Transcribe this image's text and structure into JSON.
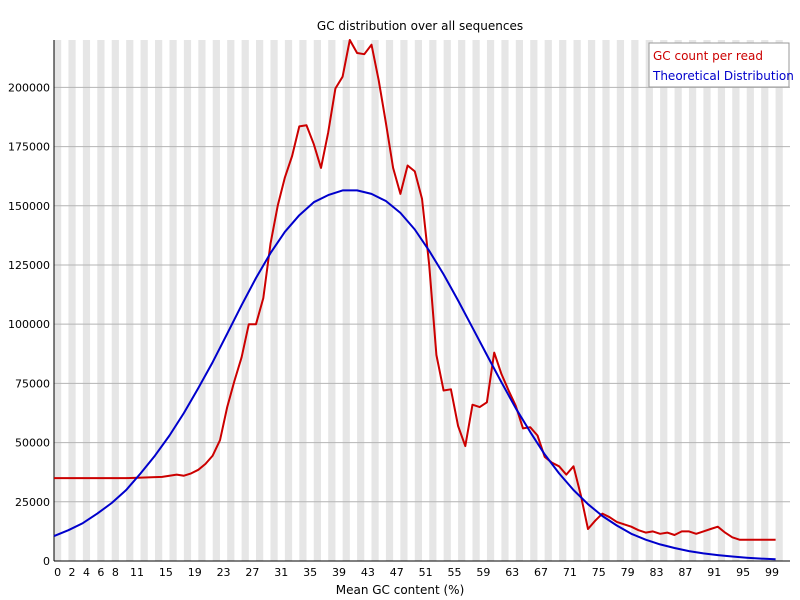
{
  "chart_data": {
    "type": "line",
    "title": "GC distribution over all sequences",
    "xlabel": "Mean GC content (%)",
    "ylabel": "",
    "xlim": [
      0,
      102
    ],
    "ylim": [
      0,
      220000
    ],
    "x_tick_labels": [
      "0",
      "2",
      "4",
      "6",
      "8",
      "11",
      "15",
      "19",
      "23",
      "27",
      "31",
      "35",
      "39",
      "43",
      "47",
      "51",
      "55",
      "59",
      "63",
      "67",
      "71",
      "75",
      "79",
      "83",
      "87",
      "91",
      "95",
      "99"
    ],
    "y_tick_labels": [
      "0",
      "25000",
      "50000",
      "75000",
      "100000",
      "125000",
      "150000",
      "175000",
      "200000"
    ],
    "y_tick_values": [
      0,
      25000,
      50000,
      75000,
      100000,
      125000,
      150000,
      175000,
      200000
    ],
    "grid": "alternating vertical bands, horizontal gridlines",
    "legend_position": "top-right",
    "series": [
      {
        "name": "GC count per read",
        "color": "#cc0000",
        "points": [
          [
            0,
            35000
          ],
          [
            5,
            35000
          ],
          [
            10,
            35000
          ],
          [
            15,
            35500
          ],
          [
            17,
            36500
          ],
          [
            18,
            36000
          ],
          [
            19,
            37000
          ],
          [
            20,
            38500
          ],
          [
            21,
            41000
          ],
          [
            22,
            44500
          ],
          [
            23,
            51000
          ],
          [
            24,
            65000
          ],
          [
            25,
            76000
          ],
          [
            26,
            86000
          ],
          [
            27,
            100000
          ],
          [
            28,
            100000
          ],
          [
            29,
            111000
          ],
          [
            30,
            134000
          ],
          [
            31,
            150000
          ],
          [
            32,
            162000
          ],
          [
            33,
            171000
          ],
          [
            34,
            183500
          ],
          [
            35,
            184000
          ],
          [
            36,
            176000
          ],
          [
            37,
            166000
          ],
          [
            38,
            181000
          ],
          [
            39,
            199500
          ],
          [
            40,
            204500
          ],
          [
            41,
            220000
          ],
          [
            42,
            214500
          ],
          [
            43,
            214000
          ],
          [
            44,
            218000
          ],
          [
            45,
            203000
          ],
          [
            46,
            185000
          ],
          [
            47,
            166000
          ],
          [
            48,
            155000
          ],
          [
            49,
            167000
          ],
          [
            50,
            164500
          ],
          [
            51,
            153000
          ],
          [
            52,
            125000
          ],
          [
            53,
            87000
          ],
          [
            54,
            72000
          ],
          [
            55,
            72500
          ],
          [
            56,
            57000
          ],
          [
            57,
            48500
          ],
          [
            58,
            66000
          ],
          [
            59,
            65000
          ],
          [
            60,
            67000
          ],
          [
            61,
            88000
          ],
          [
            62,
            79000
          ],
          [
            63,
            72000
          ],
          [
            64,
            65500
          ],
          [
            65,
            56000
          ],
          [
            66,
            56500
          ],
          [
            67,
            53000
          ],
          [
            68,
            44000
          ],
          [
            69,
            41500
          ],
          [
            70,
            40000
          ],
          [
            71,
            36500
          ],
          [
            72,
            40000
          ],
          [
            73,
            28000
          ],
          [
            74,
            13500
          ],
          [
            75,
            17000
          ],
          [
            76,
            20000
          ],
          [
            77,
            18500
          ],
          [
            78,
            16500
          ],
          [
            79,
            15500
          ],
          [
            80,
            14500
          ],
          [
            81,
            13000
          ],
          [
            82,
            12000
          ],
          [
            83,
            12500
          ],
          [
            84,
            11500
          ],
          [
            85,
            12000
          ],
          [
            86,
            11000
          ],
          [
            87,
            12500
          ],
          [
            88,
            12500
          ],
          [
            89,
            11500
          ],
          [
            90,
            12500
          ],
          [
            91,
            13500
          ],
          [
            92,
            14500
          ],
          [
            93,
            12000
          ],
          [
            94,
            10000
          ],
          [
            95,
            9000
          ],
          [
            100,
            9000
          ]
        ]
      },
      {
        "name": "Theoretical Distribution",
        "color": "#0000cc",
        "points": [
          [
            0,
            10500
          ],
          [
            2,
            13000
          ],
          [
            4,
            16000
          ],
          [
            6,
            20000
          ],
          [
            8,
            24500
          ],
          [
            10,
            30000
          ],
          [
            12,
            37000
          ],
          [
            14,
            44500
          ],
          [
            16,
            53000
          ],
          [
            18,
            62500
          ],
          [
            20,
            73000
          ],
          [
            22,
            84000
          ],
          [
            24,
            96000
          ],
          [
            26,
            108000
          ],
          [
            28,
            119500
          ],
          [
            30,
            130000
          ],
          [
            32,
            139000
          ],
          [
            34,
            146000
          ],
          [
            36,
            151500
          ],
          [
            38,
            154500
          ],
          [
            40,
            156500
          ],
          [
            42,
            156500
          ],
          [
            44,
            155000
          ],
          [
            46,
            152000
          ],
          [
            48,
            147000
          ],
          [
            50,
            140000
          ],
          [
            52,
            131000
          ],
          [
            54,
            121000
          ],
          [
            56,
            110000
          ],
          [
            58,
            98500
          ],
          [
            60,
            87000
          ],
          [
            62,
            75500
          ],
          [
            64,
            64500
          ],
          [
            66,
            54500
          ],
          [
            68,
            45000
          ],
          [
            70,
            37000
          ],
          [
            72,
            30000
          ],
          [
            74,
            24000
          ],
          [
            76,
            19000
          ],
          [
            78,
            15000
          ],
          [
            80,
            11500
          ],
          [
            82,
            9000
          ],
          [
            84,
            7000
          ],
          [
            86,
            5500
          ],
          [
            88,
            4200
          ],
          [
            90,
            3200
          ],
          [
            92,
            2500
          ],
          [
            94,
            1900
          ],
          [
            96,
            1400
          ],
          [
            98,
            1000
          ],
          [
            100,
            700
          ]
        ]
      }
    ]
  }
}
